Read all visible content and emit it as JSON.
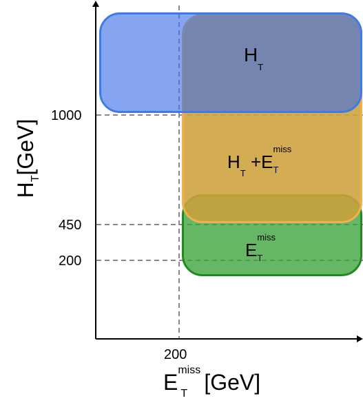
{
  "axes": {
    "x_label": "E",
    "x_label_sub": "T",
    "x_label_sup": "miss",
    "x_label_unit": "[GeV]",
    "y_label": "H",
    "y_label_sub": "T",
    "y_label_unit": "[GeV]",
    "x_ticks": [
      "200"
    ],
    "y_ticks": [
      "1000",
      "450",
      "200"
    ]
  },
  "regions": {
    "ht": {
      "main": "H",
      "sub": "T",
      "color": "#4a7fe0"
    },
    "ht_met": {
      "main1": "H",
      "sub1": "T",
      "op": "+",
      "main2": "E",
      "sub2": "T",
      "sup2": "miss",
      "color": "#d8a23a"
    },
    "met": {
      "main": "E",
      "sub": "T",
      "sup": "miss",
      "color": "#3aa33a"
    }
  }
}
